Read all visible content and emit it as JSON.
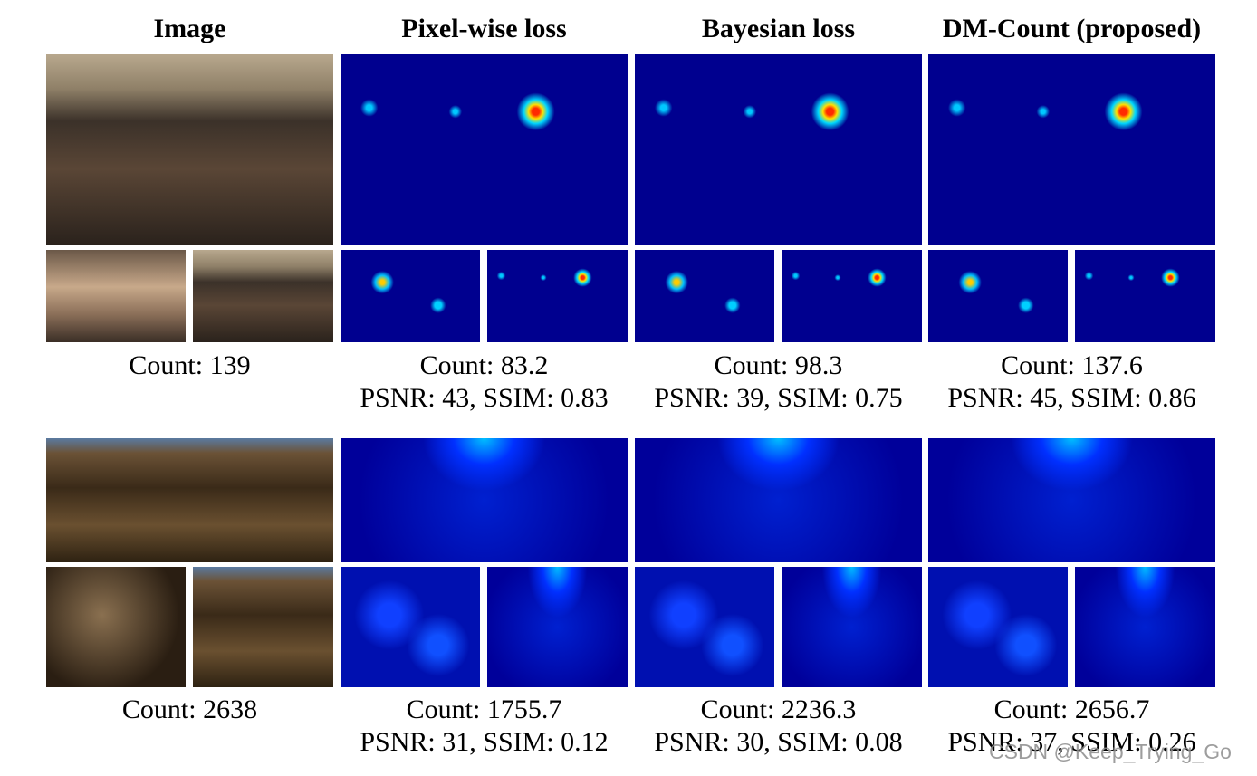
{
  "headers": [
    "Image",
    "Pixel-wise loss",
    "Bayesian loss",
    "DM-Count (proposed)"
  ],
  "examples": [
    {
      "captions": [
        {
          "count": "Count: 139"
        },
        {
          "count": "Count: 83.2",
          "metrics": "PSNR: 43, SSIM: 0.83"
        },
        {
          "count": "Count: 98.3",
          "metrics": "PSNR: 39, SSIM: 0.75"
        },
        {
          "count": "Count: 137.6",
          "metrics": "PSNR: 45, SSIM: 0.86"
        }
      ]
    },
    {
      "captions": [
        {
          "count": "Count: 2638"
        },
        {
          "count": "Count: 1755.7",
          "metrics": "PSNR: 31, SSIM: 0.12"
        },
        {
          "count": "Count: 2236.3",
          "metrics": "PSNR: 30, SSIM: 0.08"
        },
        {
          "count": "Count: 2656.7",
          "metrics": "PSNR: 37, SSIM: 0.26"
        }
      ]
    }
  ],
  "watermark": "CSDN @Keep_Trying_Go"
}
